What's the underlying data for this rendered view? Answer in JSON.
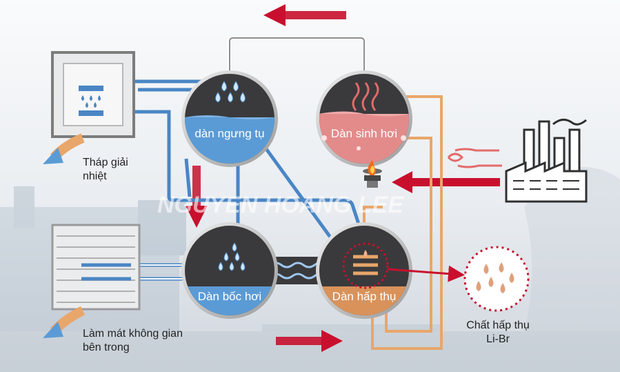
{
  "labels": {
    "condenser": "dàn ngưng tụ",
    "generator": "Dàn sinh hơi",
    "evaporator": "Dàn bốc hơi",
    "absorber": "Dàn hấp thụ",
    "cooling_tower": "Tháp giải nhiệt",
    "space_cooling": "Làm mát không gian bên trong",
    "absorbent": "Chất hấp thụ Li-Br"
  },
  "watermark": "NGUYEN HOANG LEE",
  "colors": {
    "arrow_red": "#c8102e",
    "pipe_blue": "#4a86c5",
    "pipe_orange": "#e8a66a",
    "vessel_dark": "#3a3a3c",
    "water_blue": "#5b9bd5",
    "solution_pink": "#e38b8b",
    "solution_orange": "#d9925a"
  },
  "icons": {
    "cooling_tower": "cooling-tower-icon",
    "indoor_unit": "indoor-unit-icon",
    "factory": "factory-icon",
    "flame": "flame-icon",
    "heat_waves": "heat-waves-icon",
    "droplets": "droplets-icon"
  }
}
